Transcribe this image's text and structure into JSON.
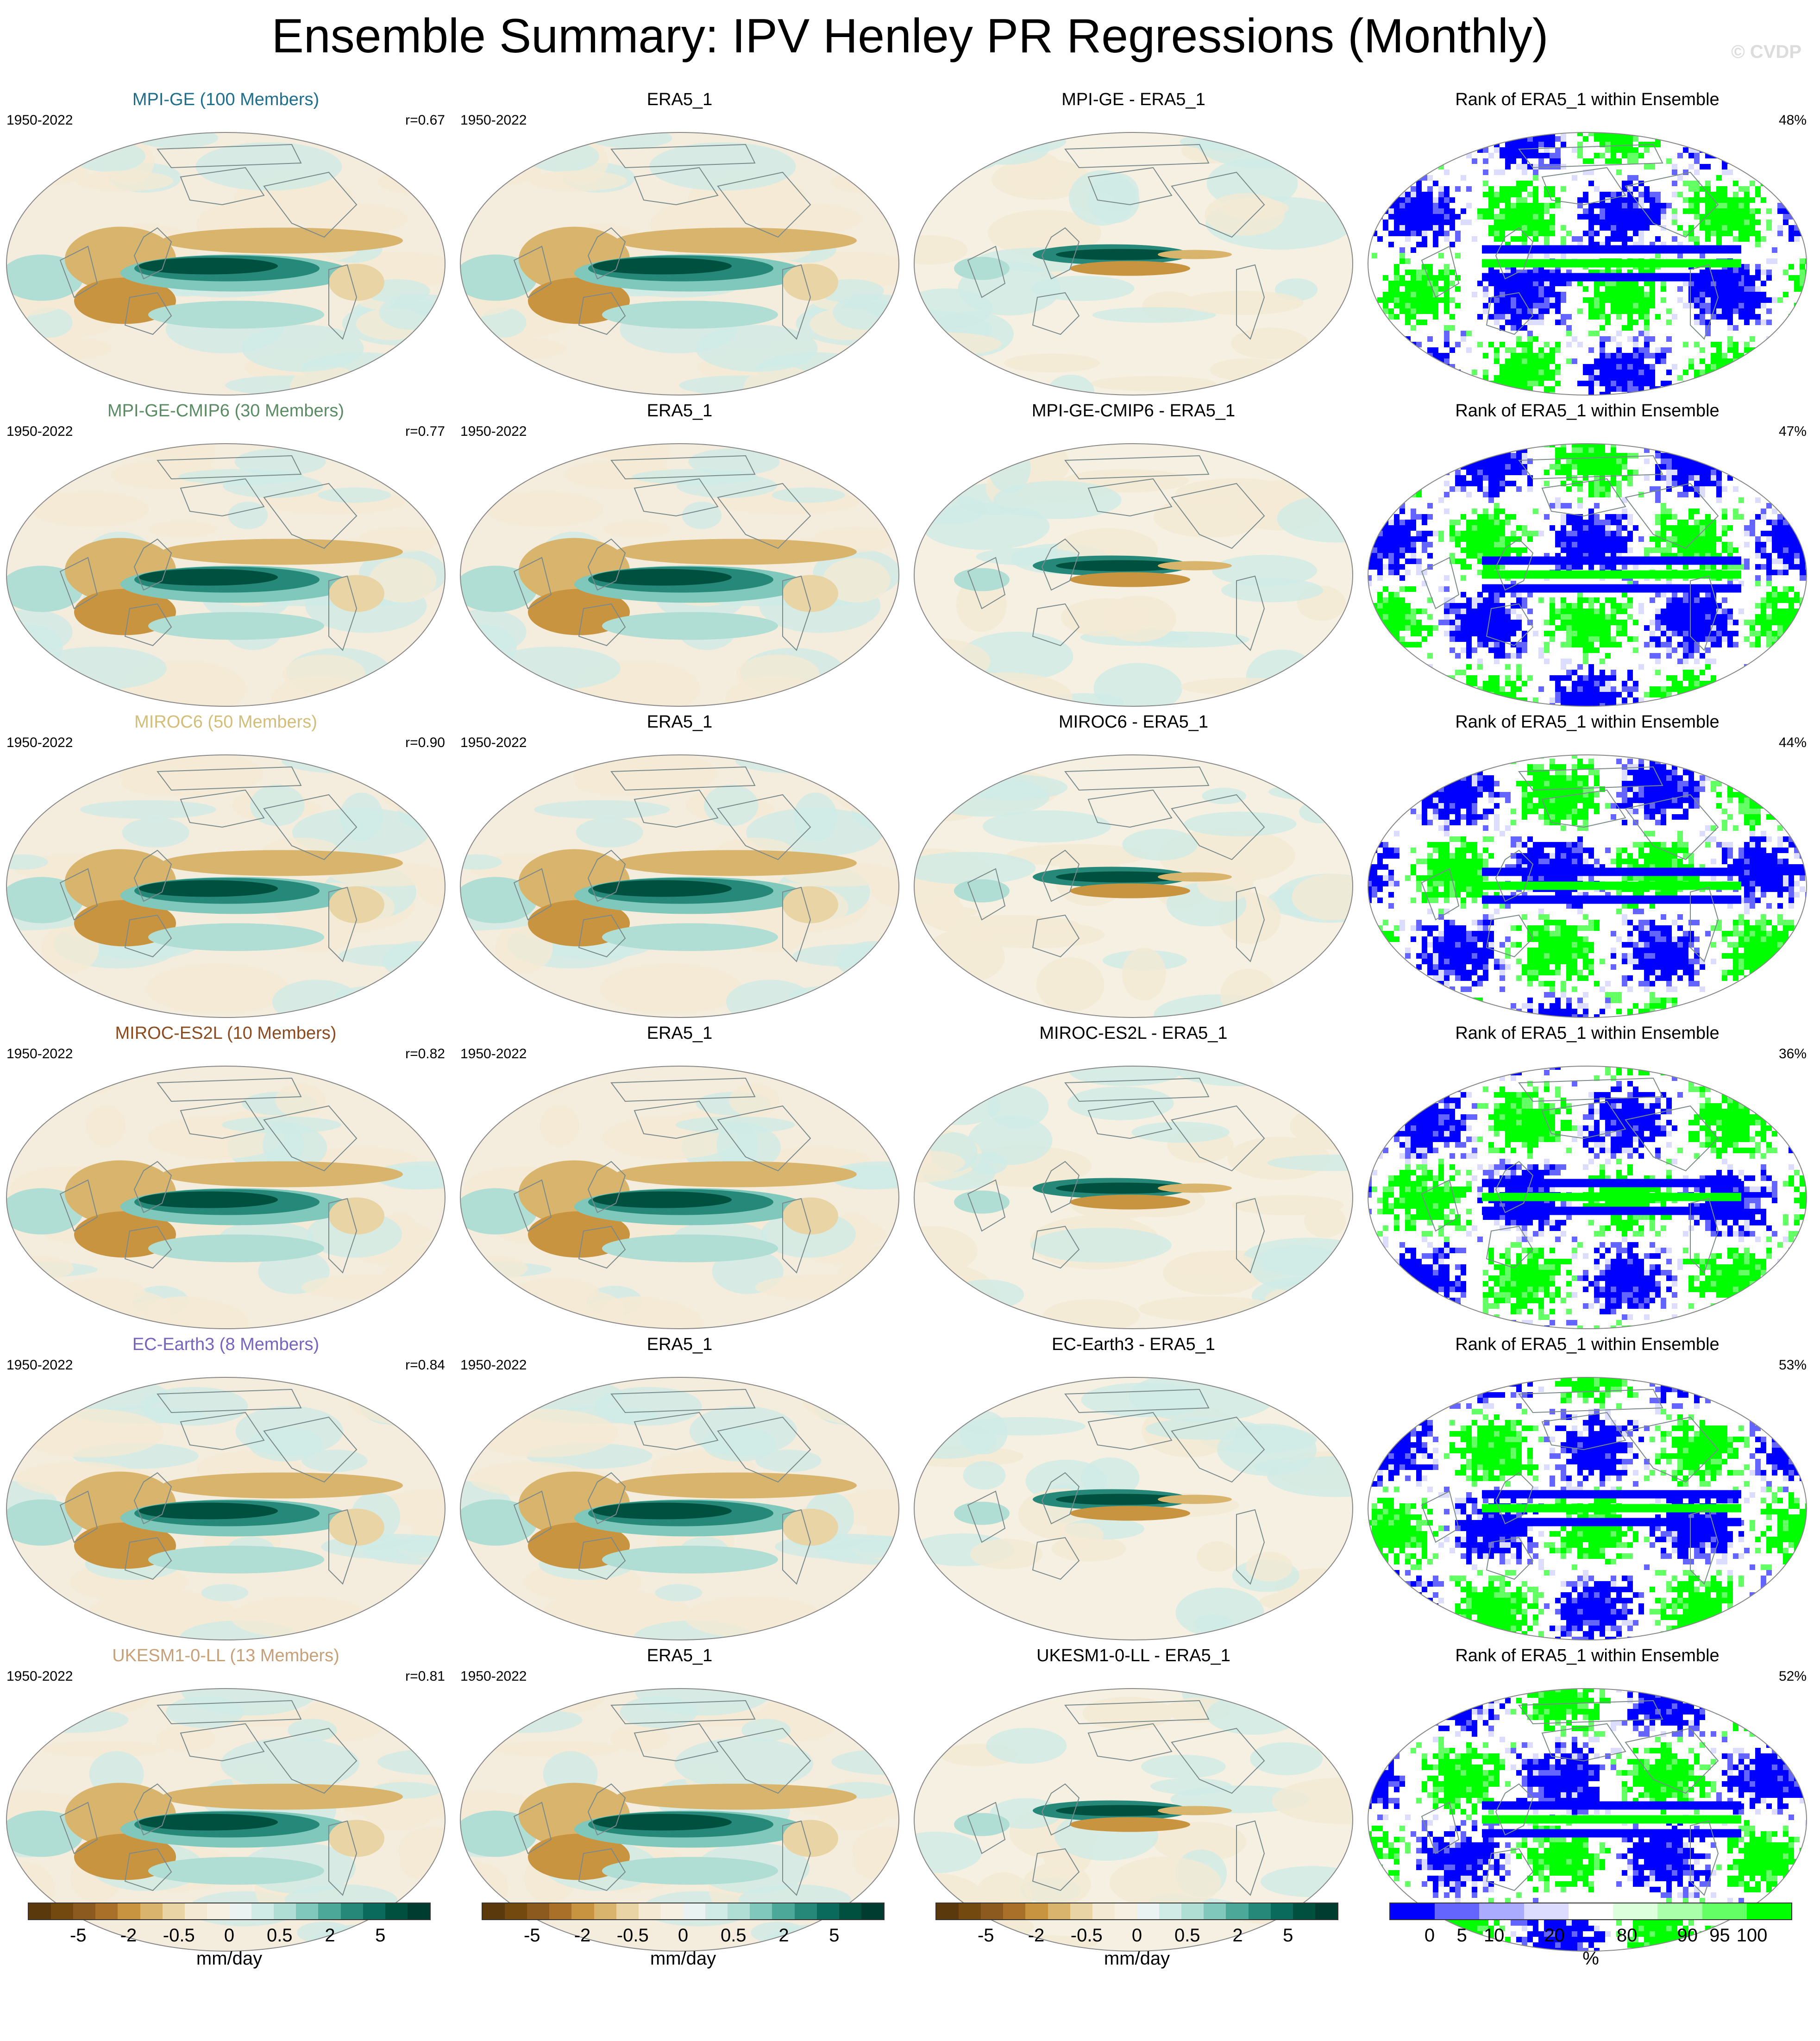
{
  "title": "Ensemble Summary: IPV Henley PR Regressions (Monthly)",
  "copyright": "© CVDP",
  "rows": [
    {
      "model_label": "MPI-GE (100 Members)",
      "model_color": "#1e6e8c",
      "years": "1950-2022",
      "r": "r=0.67",
      "obs_title": "ERA5_1",
      "obs_years": "1950-2022",
      "diff_title": "MPI-GE - ERA5_1",
      "rank_title": "Rank of ERA5_1 within Ensemble",
      "rank_pct": "48%"
    },
    {
      "model_label": "MPI-GE-CMIP6 (30 Members)",
      "model_color": "#5a8c64",
      "years": "1950-2022",
      "r": "r=0.77",
      "obs_title": "ERA5_1",
      "obs_years": "1950-2022",
      "diff_title": "MPI-GE-CMIP6 - ERA5_1",
      "rank_title": "Rank of ERA5_1 within Ensemble",
      "rank_pct": "47%"
    },
    {
      "model_label": "MIROC6 (50 Members)",
      "model_color": "#d2be78",
      "years": "1950-2022",
      "r": "r=0.90",
      "obs_title": "ERA5_1",
      "obs_years": "1950-2022",
      "diff_title": "MIROC6 - ERA5_1",
      "rank_title": "Rank of ERA5_1 within Ensemble",
      "rank_pct": "44%"
    },
    {
      "model_label": "MIROC-ES2L (10 Members)",
      "model_color": "#8c4b1e",
      "years": "1950-2022",
      "r": "r=0.82",
      "obs_title": "ERA5_1",
      "obs_years": "1950-2022",
      "diff_title": "MIROC-ES2L - ERA5_1",
      "rank_title": "Rank of ERA5_1 within Ensemble",
      "rank_pct": "36%"
    },
    {
      "model_label": "EC-Earth3 (8 Members)",
      "model_color": "#7864be",
      "years": "1950-2022",
      "r": "r=0.84",
      "obs_title": "ERA5_1",
      "obs_years": "1950-2022",
      "diff_title": "EC-Earth3 - ERA5_1",
      "rank_title": "Rank of ERA5_1 within Ensemble",
      "rank_pct": "53%"
    },
    {
      "model_label": "UKESM1-0-LL (13 Members)",
      "model_color": "#c8a078",
      "years": "1950-2022",
      "r": "r=0.81",
      "obs_title": "ERA5_1",
      "obs_years": "1950-2022",
      "diff_title": "UKESM1-0-LL - ERA5_1",
      "rank_title": "Rank of ERA5_1 within Ensemble",
      "rank_pct": "52%"
    }
  ],
  "colorbars": [
    {
      "ticks": [
        "-5",
        "-2",
        "-0.5",
        "0",
        "0.5",
        "2",
        "5"
      ],
      "units": "mm/day"
    },
    {
      "ticks": [
        "-5",
        "-2",
        "-0.5",
        "0",
        "0.5",
        "2",
        "5"
      ],
      "units": "mm/day"
    },
    {
      "ticks": [
        "-5",
        "-2",
        "-0.5",
        "0",
        "0.5",
        "2",
        "5"
      ],
      "units": "mm/day"
    },
    {
      "ticks": [
        "0",
        "5",
        "10",
        "20",
        "80",
        "90",
        "95",
        "100"
      ],
      "units": "%"
    }
  ],
  "colors": {
    "diverging": [
      "#5a3a0c",
      "#74490f",
      "#8c5a1e",
      "#a87028",
      "#c89440",
      "#d8b46c",
      "#e8d4a4",
      "#f4ead4",
      "#f6f0e2",
      "#eaf3f2",
      "#d0ebe6",
      "#b0ddd4",
      "#80c8bc",
      "#4ca898",
      "#268878",
      "#0a6a5c",
      "#00503f",
      "#003c30"
    ],
    "rank": [
      "#0000ff",
      "#6464ff",
      "#aaaaff",
      "#dcdcff",
      "#ffffff",
      "#dcffdc",
      "#aaffaa",
      "#64ff64",
      "#00ff00"
    ],
    "land_outline": "#7a8a8a",
    "map_outline": "#888888"
  }
}
